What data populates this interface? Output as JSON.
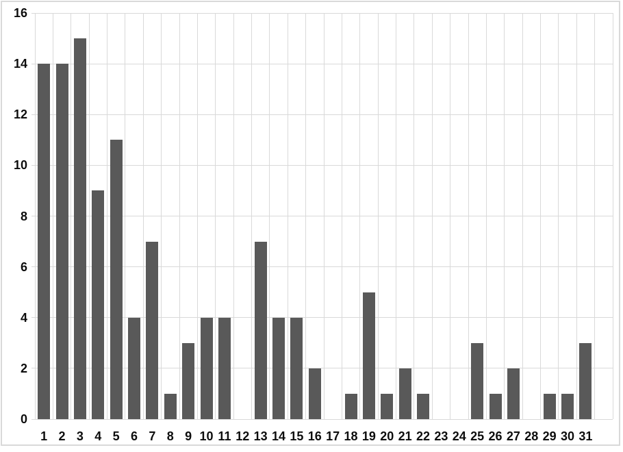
{
  "chart_data": {
    "type": "bar",
    "title": "",
    "xlabel": "",
    "ylabel": "",
    "categories": [
      "1",
      "2",
      "3",
      "4",
      "5",
      "6",
      "7",
      "8",
      "9",
      "10",
      "11",
      "12",
      "13",
      "14",
      "15",
      "16",
      "17",
      "18",
      "19",
      "20",
      "21",
      "22",
      "23",
      "24",
      "25",
      "26",
      "27",
      "28",
      "29",
      "30",
      "31"
    ],
    "values": [
      14,
      14,
      15,
      9,
      11,
      4,
      7,
      1,
      3,
      4,
      4,
      0,
      7,
      4,
      4,
      2,
      0,
      1,
      5,
      1,
      2,
      1,
      0,
      0,
      3,
      1,
      2,
      0,
      1,
      1,
      3
    ],
    "ylim": [
      0,
      16
    ],
    "yticks": [
      0,
      2,
      4,
      6,
      8,
      10,
      12,
      14,
      16
    ],
    "ytick_interval": 2,
    "grid": true,
    "legend": "none",
    "x_slots": 32,
    "colors": {
      "bar": "#595959",
      "gridline": "#d9d9d9",
      "axis_line": "#d9d9d9",
      "tick_mark": "#d9d9d9",
      "tick_label": "#0d0d0d",
      "background": "#ffffff",
      "chart_border": "#d9d9d9"
    }
  }
}
